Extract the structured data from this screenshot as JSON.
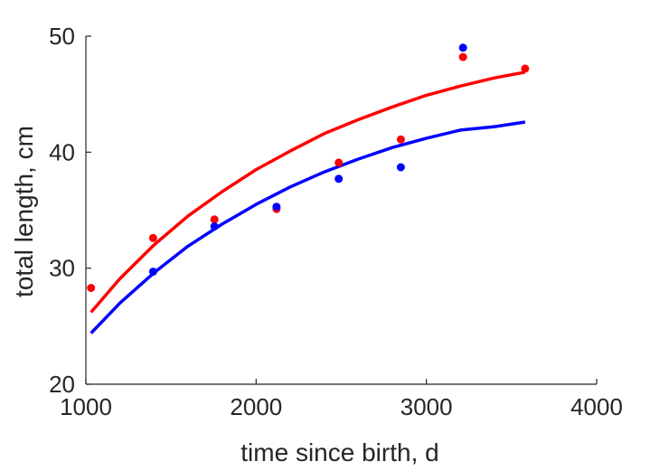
{
  "chart_data": {
    "type": "scatter",
    "xlabel": "time since birth, d",
    "ylabel": "total length, cm",
    "xlim": [
      1000,
      4000
    ],
    "ylim": [
      20,
      50
    ],
    "xticks": [
      "1000",
      "2000",
      "3000",
      "4000"
    ],
    "yticks": [
      "20",
      "30",
      "40",
      "50"
    ],
    "grid": false,
    "legend": "none",
    "series": [
      {
        "color": "#ff0000",
        "kind": "points",
        "x": [
          1030,
          1395,
          1755,
          2120,
          2485,
          2850,
          3215,
          3580
        ],
        "y": [
          28.3,
          32.6,
          34.2,
          35.1,
          39.1,
          41.1,
          48.2,
          47.2
        ]
      },
      {
        "color": "#0000ff",
        "kind": "points",
        "x": [
          1395,
          1755,
          2120,
          2485,
          2850,
          3215
        ],
        "y": [
          29.7,
          33.6,
          35.3,
          37.7,
          38.7,
          49.0
        ]
      },
      {
        "color": "#ff0000",
        "kind": "curve",
        "x": [
          1030,
          1200,
          1400,
          1600,
          1800,
          2000,
          2200,
          2400,
          2600,
          2800,
          3000,
          3200,
          3400,
          3580
        ],
        "y": [
          26.2,
          29.1,
          32.0,
          34.5,
          36.6,
          38.5,
          40.1,
          41.6,
          42.8,
          43.9,
          44.9,
          45.7,
          46.4,
          46.9
        ]
      },
      {
        "color": "#0000ff",
        "kind": "curve",
        "x": [
          1030,
          1200,
          1400,
          1600,
          1800,
          2000,
          2200,
          2400,
          2600,
          2800,
          3000,
          3200,
          3400,
          3580
        ],
        "y": [
          24.4,
          27.0,
          29.6,
          31.9,
          33.8,
          35.5,
          37.0,
          38.3,
          39.4,
          40.4,
          41.2,
          41.9,
          42.2,
          42.6
        ]
      }
    ]
  }
}
